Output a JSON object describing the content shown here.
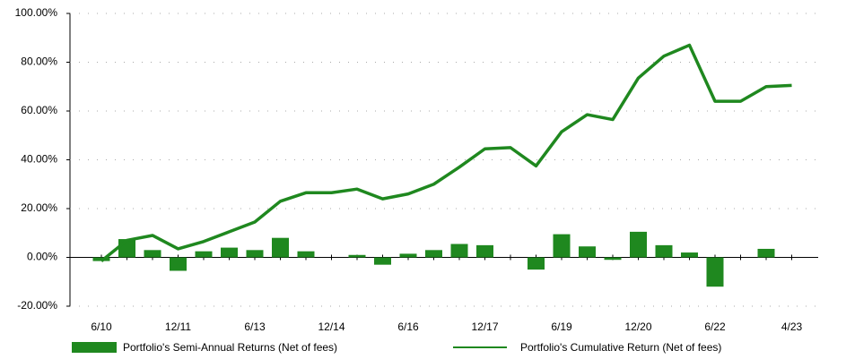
{
  "chart_data": {
    "type": "bar",
    "categories": [
      "6/10",
      null,
      null,
      "12/11",
      null,
      null,
      "6/13",
      null,
      null,
      "12/14",
      null,
      null,
      "6/16",
      null,
      null,
      "12/17",
      null,
      null,
      "6/19",
      null,
      null,
      "12/20",
      null,
      null,
      "6/22",
      null,
      null,
      "4/23"
    ],
    "series": [
      {
        "name": "Portfolio's Semi-Annual Returns (Net of fees)",
        "type": "bar",
        "color": "#1f881f",
        "values": [
          -1.5,
          7.5,
          3,
          -5.5,
          2.5,
          4,
          3,
          8,
          2.5,
          0,
          1,
          -3,
          1.5,
          3,
          5.5,
          5,
          0,
          -5,
          9.5,
          4.5,
          -1,
          10.5,
          5,
          2,
          -12,
          0,
          3.5,
          0
        ]
      },
      {
        "name": "Portfolio's Cumulative Return (Net of fees)",
        "type": "line",
        "color": "#1f881f",
        "values": [
          -1.5,
          7,
          9,
          3.5,
          6.5,
          10.5,
          14.5,
          23,
          26.5,
          26.5,
          28,
          24,
          26,
          30,
          37,
          44.5,
          45,
          37.5,
          51.5,
          58.5,
          56.5,
          73.5,
          82.5,
          87,
          64,
          64,
          70,
          70.5
        ]
      }
    ],
    "ylim": [
      -20,
      100
    ],
    "yticks": [
      {
        "value": -20,
        "label": "-20.00%"
      },
      {
        "value": 0,
        "label": "0.00%"
      },
      {
        "value": 20,
        "label": "20.00%"
      },
      {
        "value": 40,
        "label": "40.00%"
      },
      {
        "value": 60,
        "label": "60.00%"
      },
      {
        "value": 80,
        "label": "80.00%"
      },
      {
        "value": 100,
        "label": "100.00%"
      }
    ],
    "grid": true
  }
}
